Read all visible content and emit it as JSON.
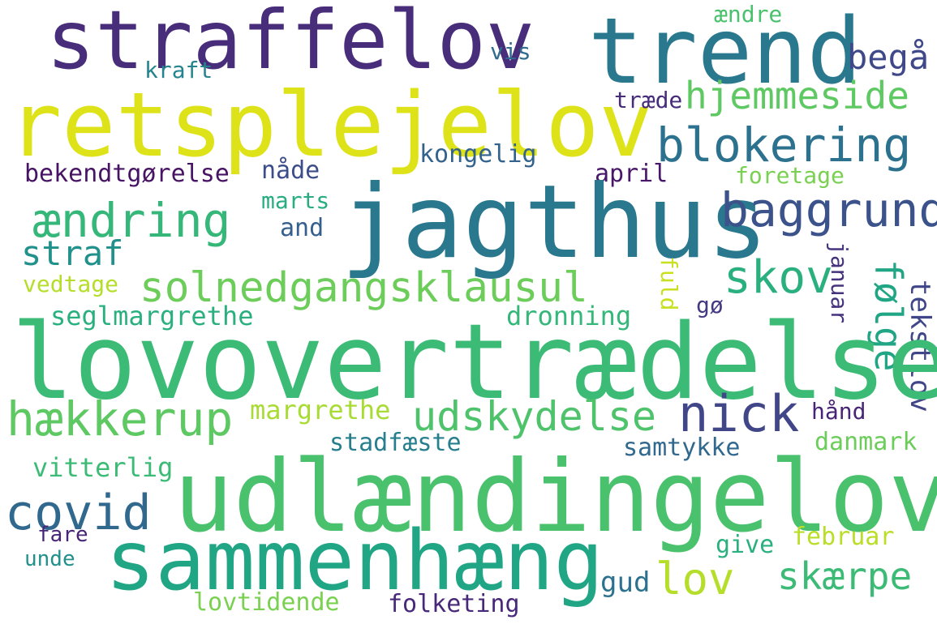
{
  "words": [
    {
      "text": "straffelov",
      "color": "#482d7b"
    },
    {
      "text": "trend",
      "color": "#2a788e"
    },
    {
      "text": "retsplejelov",
      "color": "#dde318"
    },
    {
      "text": "begå",
      "color": "#3f4889"
    },
    {
      "text": "ændre",
      "color": "#4ac16d"
    },
    {
      "text": "vis",
      "color": "#2f6c8e"
    },
    {
      "text": "kraft",
      "color": "#25848e"
    },
    {
      "text": "hjemmeside",
      "color": "#5ec962"
    },
    {
      "text": "træde",
      "color": "#472c7a"
    },
    {
      "text": "blokering",
      "color": "#2c728e"
    },
    {
      "text": "kongelig",
      "color": "#33638d"
    },
    {
      "text": "bekendtgørelse",
      "color": "#471365"
    },
    {
      "text": "nåde",
      "color": "#3d4d8a"
    },
    {
      "text": "april",
      "color": "#481769"
    },
    {
      "text": "foretage",
      "color": "#7ad151"
    },
    {
      "text": "jagthus",
      "color": "#2a788e"
    },
    {
      "text": "baggrund",
      "color": "#3b528b"
    },
    {
      "text": "marts",
      "color": "#27ad81"
    },
    {
      "text": "ændring",
      "color": "#35b779"
    },
    {
      "text": "and",
      "color": "#355f8d"
    },
    {
      "text": "straf",
      "color": "#21918c"
    },
    {
      "text": "skov",
      "color": "#2ab07f"
    },
    {
      "text": "solnedgangsklausul",
      "color": "#6ccd5a"
    },
    {
      "text": "vedtage",
      "color": "#b5de2b"
    },
    {
      "text": "fuld",
      "color": "#c8e020"
    },
    {
      "text": "januar",
      "color": "#46337e"
    },
    {
      "text": "følge",
      "color": "#21a685"
    },
    {
      "text": "tekstlov",
      "color": "#404688"
    },
    {
      "text": "gø",
      "color": "#443a83"
    },
    {
      "text": "seglmargrethe",
      "color": "#2ab07f"
    },
    {
      "text": "dronning",
      "color": "#35b779"
    },
    {
      "text": "lovovertrædelse",
      "color": "#3bbb75"
    },
    {
      "text": "hækkerup",
      "color": "#5ec962"
    },
    {
      "text": "margrethe",
      "color": "#a8db34"
    },
    {
      "text": "udskydelse",
      "color": "#4ec36b"
    },
    {
      "text": "nick",
      "color": "#404688"
    },
    {
      "text": "hånd",
      "color": "#482475"
    },
    {
      "text": "stadfæste",
      "color": "#277f8e"
    },
    {
      "text": "samtykke",
      "color": "#31688e"
    },
    {
      "text": "danmark",
      "color": "#6ccd5a"
    },
    {
      "text": "vitterlig",
      "color": "#3bbb75"
    },
    {
      "text": "udlændingelov",
      "color": "#4ac16d"
    },
    {
      "text": "covid",
      "color": "#31688e"
    },
    {
      "text": "fare",
      "color": "#482677"
    },
    {
      "text": "unde",
      "color": "#21918c"
    },
    {
      "text": "sammenhæng",
      "color": "#21a685"
    },
    {
      "text": "februar",
      "color": "#bade28"
    },
    {
      "text": "give",
      "color": "#2ab07f"
    },
    {
      "text": "lov",
      "color": "#b5de2b"
    },
    {
      "text": "skærpe",
      "color": "#3bbb75"
    },
    {
      "text": "gud",
      "color": "#2c728e"
    },
    {
      "text": "lovtidende",
      "color": "#7ad151"
    },
    {
      "text": "folketing",
      "color": "#482878"
    }
  ]
}
